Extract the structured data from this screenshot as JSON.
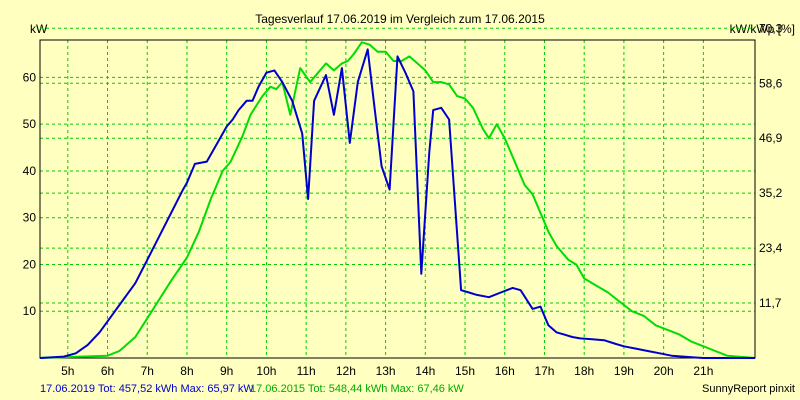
{
  "chart_data": {
    "type": "line",
    "title": "Tagesverlauf 17.06.2019 im Vergleich zum 17.06.2015",
    "ylabel_left": "kW",
    "ylabel_right": "kW/kWp [%]",
    "x_range": [
      4.3,
      22.3
    ],
    "y_range": [
      0,
      68
    ],
    "x_ticks": [
      5,
      6,
      7,
      8,
      9,
      10,
      11,
      12,
      13,
      14,
      15,
      16,
      17,
      18,
      19,
      20,
      21
    ],
    "x_tick_labels": [
      "5h",
      "6h",
      "7h",
      "8h",
      "9h",
      "10h",
      "11h",
      "12h",
      "13h",
      "14h",
      "15h",
      "16h",
      "17h",
      "18h",
      "19h",
      "20h",
      "21h"
    ],
    "y_ticks_left": [
      10,
      20,
      30,
      40,
      50,
      60
    ],
    "y_ticks_left_labels": [
      "10",
      "20",
      "30",
      "40",
      "50",
      "60"
    ],
    "y_ticks_right": [
      11.75,
      23.5,
      35.25,
      47.0,
      58.75,
      70.5
    ],
    "y_ticks_right_labels": [
      "11,7",
      "23,4",
      "35,2",
      "46,9",
      "58,6",
      "70,3"
    ],
    "grid": true,
    "series": [
      {
        "name": "17.06.2019",
        "color": "#0000cc",
        "x": [
          4.3,
          4.9,
          5.2,
          5.5,
          5.8,
          6.1,
          6.4,
          6.7,
          7.0,
          7.3,
          7.6,
          7.9,
          8.0,
          8.2,
          8.5,
          8.8,
          9.0,
          9.15,
          9.3,
          9.5,
          9.65,
          9.8,
          10.0,
          10.2,
          10.4,
          10.65,
          10.9,
          11.05,
          11.2,
          11.5,
          11.7,
          11.9,
          12.1,
          12.3,
          12.55,
          12.7,
          12.9,
          13.1,
          13.3,
          13.5,
          13.7,
          13.9,
          14.1,
          14.2,
          14.4,
          14.6,
          14.9,
          15.1,
          15.3,
          15.6,
          15.9,
          16.2,
          16.4,
          16.7,
          16.9,
          17.1,
          17.3,
          17.5,
          17.7,
          17.9,
          18.2,
          18.5,
          18.8,
          19.0,
          19.3,
          19.6,
          19.9,
          20.2,
          20.5,
          20.8,
          21.0,
          21.3,
          21.6,
          22.3
        ],
        "values": [
          0,
          0.3,
          1,
          2.8,
          5.5,
          9,
          12.5,
          16,
          21,
          26,
          31,
          36,
          37.5,
          41.5,
          42,
          46.5,
          49.5,
          51,
          53,
          55,
          55,
          58,
          61,
          61.5,
          59,
          55,
          48,
          34,
          55,
          60.5,
          52,
          62,
          46,
          59,
          66,
          55,
          41,
          36,
          64.5,
          61,
          57,
          18,
          44,
          53,
          53.5,
          51,
          14.5,
          14,
          13.5,
          13,
          14,
          15,
          14.5,
          10.5,
          11,
          7,
          5.5,
          5,
          4.5,
          4.2,
          4,
          3.8,
          3,
          2.5,
          2,
          1.5,
          1,
          0.5,
          0.3,
          0.1,
          0,
          0,
          0,
          0
        ]
      },
      {
        "name": "17.06.2015",
        "color": "#00dd00",
        "x": [
          4.3,
          6.0,
          6.3,
          6.7,
          7.0,
          7.3,
          7.6,
          8.0,
          8.3,
          8.6,
          8.9,
          9.1,
          9.4,
          9.6,
          9.9,
          10.1,
          10.25,
          10.4,
          10.6,
          10.85,
          11.1,
          11.3,
          11.5,
          11.7,
          11.9,
          12.05,
          12.2,
          12.4,
          12.6,
          12.8,
          13.0,
          13.2,
          13.4,
          13.6,
          13.8,
          14.0,
          14.2,
          14.4,
          14.6,
          14.8,
          15.0,
          15.2,
          15.45,
          15.6,
          15.8,
          16.0,
          16.2,
          16.5,
          16.7,
          16.9,
          17.1,
          17.3,
          17.6,
          17.8,
          18.0,
          18.3,
          18.6,
          18.9,
          19.2,
          19.5,
          19.8,
          20.1,
          20.4,
          20.7,
          21.0,
          21.3,
          21.6,
          22.3
        ],
        "values": [
          0,
          0.5,
          1.5,
          4.5,
          8.5,
          12.5,
          16.5,
          21.5,
          27,
          34,
          40,
          42,
          47.5,
          52,
          56,
          58,
          57.5,
          59,
          52,
          62,
          59,
          61,
          63,
          61.5,
          63,
          63.5,
          65,
          67.5,
          67,
          65.5,
          65.5,
          63.5,
          63.5,
          64.5,
          63,
          61.5,
          59,
          59,
          58.5,
          56,
          55.5,
          53.5,
          49,
          47,
          50,
          47,
          43,
          37,
          35,
          31,
          27,
          24,
          21,
          20,
          17,
          15.5,
          14,
          12,
          10,
          9,
          7,
          6,
          5,
          3.5,
          2.5,
          1.5,
          0.5,
          0
        ]
      }
    ]
  },
  "footer": {
    "series1": "17.06.2019 Tot: 457,52 kWh Max: 65,97 kW",
    "series2": "17.06.2015 Tot: 548,44 kWh Max: 67,46 kW",
    "brand": "SunnyReport pinxit"
  },
  "colors": {
    "background": "#ffffc0",
    "grid": "#00cc00",
    "axis": "#000000"
  }
}
